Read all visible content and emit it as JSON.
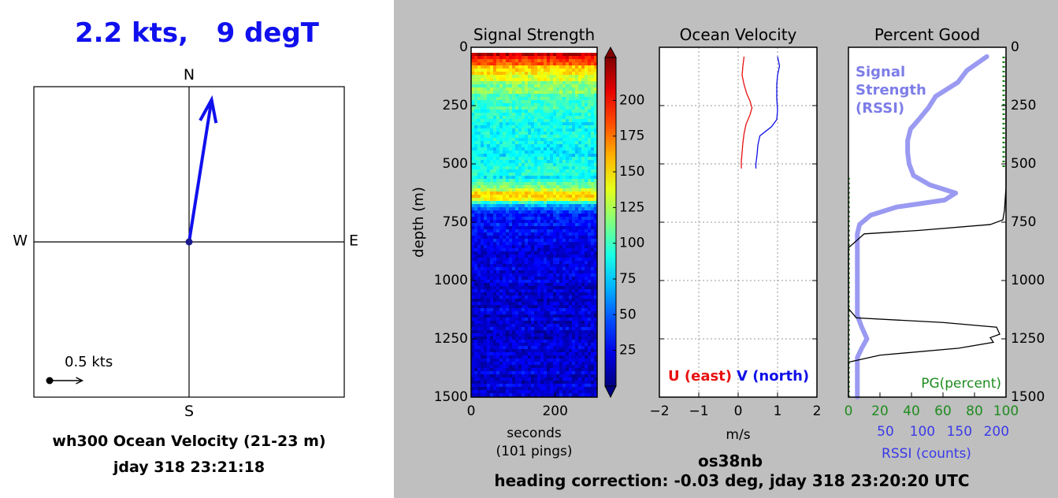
{
  "compass": {
    "headline": "2.2 kts,   9 degT",
    "directions": {
      "n": "N",
      "s": "S",
      "e": "E",
      "w": "W"
    },
    "scale_label": "0.5 kts",
    "caption_line1": "wh300 Ocean Velocity (21-23 m)",
    "caption_line2": "jday 318 23:21:18",
    "speed_kts": 2.2,
    "direction_degT": 9,
    "scale_kts": 0.5,
    "colors": {
      "vector": "#1010ee"
    }
  },
  "ylabel": "depth (m)",
  "footer": {
    "line1": "os38nb",
    "line2": "heading correction: -0.03 deg, jday 318 23:20:20 UTC"
  },
  "colorbar": {
    "ticks": [
      "25",
      "50",
      "75",
      "100",
      "125",
      "150",
      "175",
      "200"
    ],
    "range": [
      0,
      230
    ]
  },
  "chart_data": [
    {
      "type": "heatmap",
      "title": "Signal Strength",
      "xlabel": "seconds",
      "xlabel2": "(101 pings)",
      "ylabel": "depth (m)",
      "xlim": [
        0,
        300
      ],
      "ylim": [
        1500,
        0
      ],
      "xticks": [
        "0",
        "200"
      ],
      "yticks": [
        "0",
        "250",
        "500",
        "750",
        "1000",
        "1250",
        "1500"
      ],
      "depth_profile": [
        {
          "depth": 30,
          "value": 215
        },
        {
          "depth": 60,
          "value": 185
        },
        {
          "depth": 100,
          "value": 150
        },
        {
          "depth": 160,
          "value": 120
        },
        {
          "depth": 260,
          "value": 98
        },
        {
          "depth": 420,
          "value": 85
        },
        {
          "depth": 560,
          "value": 90
        },
        {
          "depth": 600,
          "value": 110
        },
        {
          "depth": 630,
          "value": 160
        },
        {
          "depth": 650,
          "value": 145
        },
        {
          "depth": 680,
          "value": 60
        },
        {
          "depth": 720,
          "value": 30
        },
        {
          "depth": 1000,
          "value": 20
        },
        {
          "depth": 1500,
          "value": 20
        }
      ]
    },
    {
      "type": "line",
      "title": "Ocean Velocity",
      "xlabel": "m/s",
      "xlim": [
        -2,
        2
      ],
      "ylim": [
        1500,
        0
      ],
      "xticks": [
        "−2",
        "−1",
        "0",
        "1",
        "2"
      ],
      "grid": true,
      "legend": [
        "U (east)",
        "V (north)"
      ],
      "series": [
        {
          "name": "U (east)",
          "color": "#e81010",
          "points": [
            [
              0.15,
              40
            ],
            [
              0.12,
              80
            ],
            [
              0.1,
              120
            ],
            [
              0.15,
              160
            ],
            [
              0.22,
              200
            ],
            [
              0.3,
              230
            ],
            [
              0.35,
              260
            ],
            [
              0.3,
              290
            ],
            [
              0.2,
              330
            ],
            [
              0.15,
              370
            ],
            [
              0.12,
              410
            ],
            [
              0.1,
              450
            ],
            [
              0.08,
              490
            ],
            [
              0.08,
              520
            ]
          ]
        },
        {
          "name": "V (north)",
          "color": "#1010e8",
          "points": [
            [
              1.0,
              40
            ],
            [
              1.05,
              80
            ],
            [
              1.0,
              120
            ],
            [
              0.98,
              160
            ],
            [
              0.98,
              220
            ],
            [
              1.0,
              270
            ],
            [
              0.98,
              310
            ],
            [
              0.85,
              340
            ],
            [
              0.7,
              360
            ],
            [
              0.55,
              380
            ],
            [
              0.5,
              420
            ],
            [
              0.48,
              460
            ],
            [
              0.45,
              500
            ],
            [
              0.45,
              520
            ]
          ]
        }
      ]
    },
    {
      "type": "line",
      "title": "Percent Good",
      "xlabel": "PG(percent)",
      "xlabel2": "RSSI (counts)",
      "xlim": [
        0,
        100
      ],
      "ylim": [
        1500,
        0
      ],
      "xticks": [
        "0",
        "20",
        "40",
        "60",
        "80",
        "100"
      ],
      "xticks2": [
        "50",
        "100",
        "150",
        "200"
      ],
      "x2lim": [
        0,
        213
      ],
      "yticks": [
        "0",
        "250",
        "500",
        "750",
        "1000",
        "1250",
        "1500"
      ],
      "annotation": [
        "Signal",
        "Strength",
        "(RSSI)"
      ],
      "series": [
        {
          "name": "Signal Strength (RSSI)",
          "color": "#9a9af2",
          "axis": "counts",
          "points": [
            [
              187,
              40
            ],
            [
              160,
              100
            ],
            [
              148,
              150
            ],
            [
              118,
              210
            ],
            [
              108,
              260
            ],
            [
              95,
              310
            ],
            [
              84,
              350
            ],
            [
              80,
              400
            ],
            [
              80,
              450
            ],
            [
              82,
              500
            ],
            [
              88,
              550
            ],
            [
              110,
              590
            ],
            [
              145,
              625
            ],
            [
              130,
              655
            ],
            [
              65,
              685
            ],
            [
              30,
              720
            ],
            [
              15,
              760
            ],
            [
              12,
              800
            ],
            [
              12,
              1000
            ],
            [
              12,
              1100
            ],
            [
              12,
              1150
            ],
            [
              18,
              1200
            ],
            [
              25,
              1250
            ],
            [
              18,
              1290
            ],
            [
              12,
              1330
            ],
            [
              12,
              1500
            ]
          ]
        },
        {
          "name": "PG(percent)",
          "color": "#000000",
          "axis": "percent",
          "points": [
            [
              100,
              40
            ],
            [
              100,
              300
            ],
            [
              100,
              600
            ],
            [
              99,
              700
            ],
            [
              98,
              740
            ],
            [
              90,
              760
            ],
            [
              45,
              785
            ],
            [
              10,
              800
            ],
            [
              0,
              860
            ],
            [
              0,
              1000
            ],
            [
              0,
              1120
            ],
            [
              5,
              1160
            ],
            [
              60,
              1180
            ],
            [
              94,
              1200
            ],
            [
              96,
              1230
            ],
            [
              90,
              1245
            ],
            [
              92,
              1265
            ],
            [
              70,
              1290
            ],
            [
              20,
              1320
            ],
            [
              0,
              1350
            ],
            [
              0,
              1500
            ]
          ]
        }
      ]
    }
  ]
}
